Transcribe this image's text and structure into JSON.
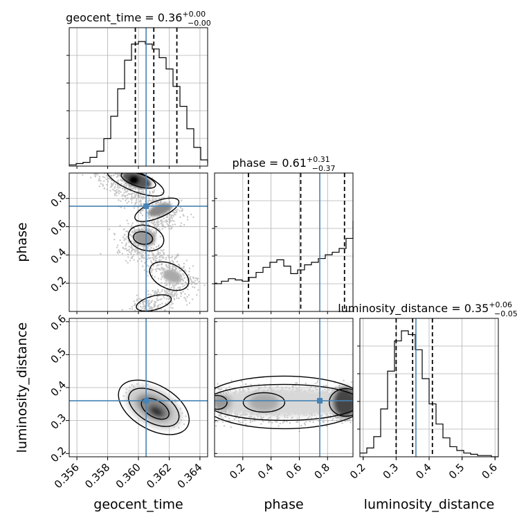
{
  "chart_data": {
    "type": "corner",
    "parameters": [
      "geocent_time",
      "phase",
      "luminosity_distance"
    ],
    "injection": {
      "geocent_time": 0.3605,
      "phase": 0.745,
      "luminosity_distance": 0.36
    },
    "grid": "on",
    "titles": {
      "geocent_time": {
        "name": "geocent_time",
        "median": "0.36",
        "plus": "+0.00",
        "minus": "−0.00"
      },
      "phase": {
        "name": "phase",
        "median": "0.61",
        "plus": "+0.31",
        "minus": "−0.37"
      },
      "luminosity_distance": {
        "name": "luminosity_distance",
        "median": "0.35",
        "plus": "+0.06",
        "minus": "−0.05"
      }
    },
    "axes": {
      "geocent_time": {
        "label": "geocent_time",
        "range": [
          0.3555,
          0.3645
        ],
        "ticks": [
          0.356,
          0.358,
          0.36,
          0.362,
          0.364
        ],
        "tick_labels": [
          "0.356",
          "0.358",
          "0.360",
          "0.362",
          "0.364"
        ]
      },
      "phase": {
        "label": "phase",
        "range": [
          0.0,
          0.98
        ],
        "ticks": [
          0.2,
          0.4,
          0.6,
          0.8
        ],
        "tick_labels": [
          "0.2",
          "0.4",
          "0.6",
          "0.8"
        ]
      },
      "luminosity_distance": {
        "label": "luminosity_distance",
        "range": [
          0.19,
          0.61
        ],
        "ticks": [
          0.2,
          0.3,
          0.4,
          0.5,
          0.6
        ],
        "tick_labels": [
          "0.2",
          "0.3",
          "0.4",
          "0.5",
          "0.6"
        ]
      }
    },
    "histograms": {
      "geocent_time": {
        "x": [
          0.3555,
          0.35595,
          0.3564,
          0.35685,
          0.3573,
          0.35775,
          0.3582,
          0.35865,
          0.3591,
          0.35955,
          0.36,
          0.36045,
          0.3609,
          0.36135,
          0.3618,
          0.36225,
          0.3627,
          0.36315,
          0.3636,
          0.36405,
          0.3645
        ],
        "counts": [
          0.01,
          0.02,
          0.03,
          0.07,
          0.12,
          0.22,
          0.4,
          0.62,
          0.85,
          0.98,
          1.0,
          0.98,
          0.94,
          0.87,
          0.78,
          0.64,
          0.48,
          0.3,
          0.15,
          0.05,
          0.02
        ],
        "quantiles": [
          0.3598,
          0.361,
          0.3625
        ]
      },
      "phase": {
        "x": [
          0.0,
          0.049,
          0.098,
          0.147,
          0.196,
          0.245,
          0.294,
          0.343,
          0.392,
          0.441,
          0.49,
          0.539,
          0.588,
          0.637,
          0.686,
          0.735,
          0.784,
          0.833,
          0.882,
          0.931,
          0.98
        ],
        "counts": [
          0.22,
          0.24,
          0.26,
          0.25,
          0.24,
          0.27,
          0.31,
          0.35,
          0.39,
          0.41,
          0.36,
          0.3,
          0.33,
          0.37,
          0.39,
          0.42,
          0.45,
          0.47,
          0.5,
          0.58,
          0.72
        ],
        "quantiles": [
          0.24,
          0.61,
          0.92
        ]
      },
      "luminosity_distance": {
        "x": [
          0.19,
          0.211,
          0.232,
          0.253,
          0.274,
          0.295,
          0.316,
          0.337,
          0.358,
          0.379,
          0.4,
          0.421,
          0.442,
          0.463,
          0.484,
          0.505,
          0.526,
          0.547,
          0.568,
          0.589,
          0.61
        ],
        "counts": [
          0.03,
          0.07,
          0.16,
          0.38,
          0.68,
          0.92,
          1.0,
          0.97,
          0.85,
          0.62,
          0.42,
          0.26,
          0.15,
          0.08,
          0.05,
          0.03,
          0.02,
          0.01,
          0.01,
          0.0,
          0.0
        ],
        "quantiles": [
          0.3,
          0.35,
          0.41
        ]
      }
    },
    "contours": {
      "phase_vs_geocent_time": {
        "x": "geocent_time",
        "y": "phase",
        "levels": 3,
        "mode": "winding band from high phase at 0.3596 down to low phase at 0.3612"
      },
      "luminosity_distance_vs_geocent_time": {
        "x": "geocent_time",
        "y": "luminosity_distance",
        "levels": 3,
        "peak": [
          0.361,
          0.33
        ],
        "correlation": "negative"
      },
      "luminosity_distance_vs_phase": {
        "x": "phase",
        "y": "luminosity_distance",
        "levels": 3,
        "center_ld": 0.355,
        "shape": "horizontal band"
      }
    }
  }
}
